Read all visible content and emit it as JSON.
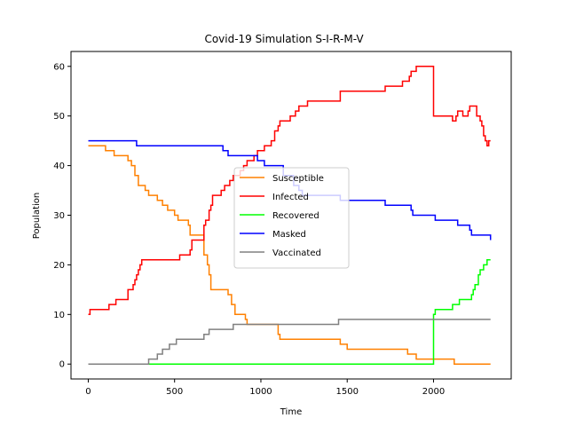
{
  "chart_data": {
    "type": "line",
    "title": "Covid-19 Simulation S-I-R-M-V",
    "xlabel": "Time",
    "ylabel": "Population",
    "xlim": [
      -100,
      2450
    ],
    "ylim": [
      -3,
      63
    ],
    "xticks": [
      0,
      500,
      1000,
      1500,
      2000
    ],
    "yticks": [
      0,
      10,
      20,
      30,
      40,
      50,
      60
    ],
    "grid": false,
    "legend_position": "center",
    "series": [
      {
        "name": "Susceptible",
        "color": "#ff8000",
        "step": true,
        "points": [
          [
            0,
            44
          ],
          [
            100,
            43
          ],
          [
            150,
            42
          ],
          [
            220,
            42
          ],
          [
            230,
            41
          ],
          [
            250,
            40
          ],
          [
            270,
            38
          ],
          [
            290,
            36
          ],
          [
            330,
            35
          ],
          [
            350,
            34
          ],
          [
            400,
            33
          ],
          [
            430,
            32
          ],
          [
            460,
            31
          ],
          [
            500,
            30
          ],
          [
            520,
            29
          ],
          [
            580,
            28
          ],
          [
            590,
            26
          ],
          [
            650,
            26
          ],
          [
            670,
            22
          ],
          [
            690,
            20
          ],
          [
            700,
            18
          ],
          [
            710,
            15
          ],
          [
            800,
            15
          ],
          [
            810,
            14
          ],
          [
            830,
            12
          ],
          [
            850,
            10
          ],
          [
            900,
            10
          ],
          [
            910,
            9
          ],
          [
            920,
            8
          ],
          [
            1080,
            8
          ],
          [
            1100,
            6
          ],
          [
            1110,
            5
          ],
          [
            1450,
            5
          ],
          [
            1460,
            4
          ],
          [
            1500,
            3
          ],
          [
            1830,
            3
          ],
          [
            1850,
            2
          ],
          [
            1880,
            2
          ],
          [
            1900,
            1
          ],
          [
            2100,
            1
          ],
          [
            2120,
            0
          ],
          [
            2330,
            0
          ]
        ]
      },
      {
        "name": "Infected",
        "color": "#ff0000",
        "step": true,
        "points": [
          [
            0,
            10
          ],
          [
            10,
            11
          ],
          [
            100,
            11
          ],
          [
            120,
            12
          ],
          [
            150,
            12
          ],
          [
            160,
            13
          ],
          [
            220,
            13
          ],
          [
            230,
            15
          ],
          [
            260,
            16
          ],
          [
            270,
            17
          ],
          [
            280,
            18
          ],
          [
            290,
            19
          ],
          [
            300,
            20
          ],
          [
            310,
            21
          ],
          [
            530,
            22
          ],
          [
            590,
            23
          ],
          [
            600,
            25
          ],
          [
            660,
            25
          ],
          [
            670,
            28
          ],
          [
            680,
            29
          ],
          [
            700,
            31
          ],
          [
            710,
            32
          ],
          [
            720,
            34
          ],
          [
            770,
            35
          ],
          [
            790,
            36
          ],
          [
            820,
            37
          ],
          [
            840,
            38
          ],
          [
            880,
            39
          ],
          [
            900,
            40
          ],
          [
            920,
            41
          ],
          [
            960,
            42
          ],
          [
            980,
            43
          ],
          [
            1020,
            44
          ],
          [
            1060,
            45
          ],
          [
            1080,
            47
          ],
          [
            1100,
            48
          ],
          [
            1110,
            49
          ],
          [
            1170,
            50
          ],
          [
            1200,
            51
          ],
          [
            1220,
            52
          ],
          [
            1270,
            53
          ],
          [
            1460,
            55
          ],
          [
            1720,
            56
          ],
          [
            1820,
            57
          ],
          [
            1860,
            58
          ],
          [
            1870,
            59
          ],
          [
            1900,
            60
          ],
          [
            1990,
            60
          ],
          [
            2000,
            50
          ],
          [
            2100,
            50
          ],
          [
            2110,
            49
          ],
          [
            2130,
            50
          ],
          [
            2140,
            51
          ],
          [
            2170,
            50
          ],
          [
            2200,
            51
          ],
          [
            2210,
            52
          ],
          [
            2250,
            50
          ],
          [
            2270,
            49
          ],
          [
            2280,
            48
          ],
          [
            2290,
            46
          ],
          [
            2300,
            45
          ],
          [
            2310,
            44
          ],
          [
            2320,
            45
          ],
          [
            2330,
            45
          ]
        ]
      },
      {
        "name": "Recovered",
        "color": "#00ff00",
        "step": true,
        "points": [
          [
            0,
            0
          ],
          [
            1990,
            0
          ],
          [
            2000,
            10
          ],
          [
            2010,
            11
          ],
          [
            2090,
            11
          ],
          [
            2110,
            12
          ],
          [
            2150,
            13
          ],
          [
            2220,
            14
          ],
          [
            2230,
            15
          ],
          [
            2240,
            16
          ],
          [
            2260,
            18
          ],
          [
            2270,
            19
          ],
          [
            2290,
            20
          ],
          [
            2310,
            21
          ],
          [
            2330,
            21
          ]
        ]
      },
      {
        "name": "Masked",
        "color": "#0000ff",
        "step": true,
        "points": [
          [
            0,
            45
          ],
          [
            270,
            45
          ],
          [
            280,
            44
          ],
          [
            760,
            44
          ],
          [
            780,
            43
          ],
          [
            810,
            42
          ],
          [
            960,
            42
          ],
          [
            980,
            41
          ],
          [
            1020,
            40
          ],
          [
            1110,
            40
          ],
          [
            1130,
            38
          ],
          [
            1190,
            36
          ],
          [
            1220,
            35
          ],
          [
            1240,
            34
          ],
          [
            1460,
            33
          ],
          [
            1720,
            32
          ],
          [
            1870,
            31
          ],
          [
            1880,
            30
          ],
          [
            2000,
            30
          ],
          [
            2010,
            29
          ],
          [
            2130,
            29
          ],
          [
            2140,
            28
          ],
          [
            2200,
            28
          ],
          [
            2210,
            27
          ],
          [
            2220,
            26
          ],
          [
            2320,
            26
          ],
          [
            2330,
            25
          ]
        ]
      },
      {
        "name": "Vaccinated",
        "color": "#808080",
        "step": true,
        "points": [
          [
            0,
            0
          ],
          [
            340,
            0
          ],
          [
            350,
            1
          ],
          [
            400,
            2
          ],
          [
            420,
            2
          ],
          [
            430,
            3
          ],
          [
            460,
            3
          ],
          [
            470,
            4
          ],
          [
            510,
            5
          ],
          [
            660,
            5
          ],
          [
            670,
            6
          ],
          [
            700,
            7
          ],
          [
            840,
            8
          ],
          [
            1450,
            9
          ],
          [
            2330,
            9
          ]
        ]
      }
    ]
  }
}
